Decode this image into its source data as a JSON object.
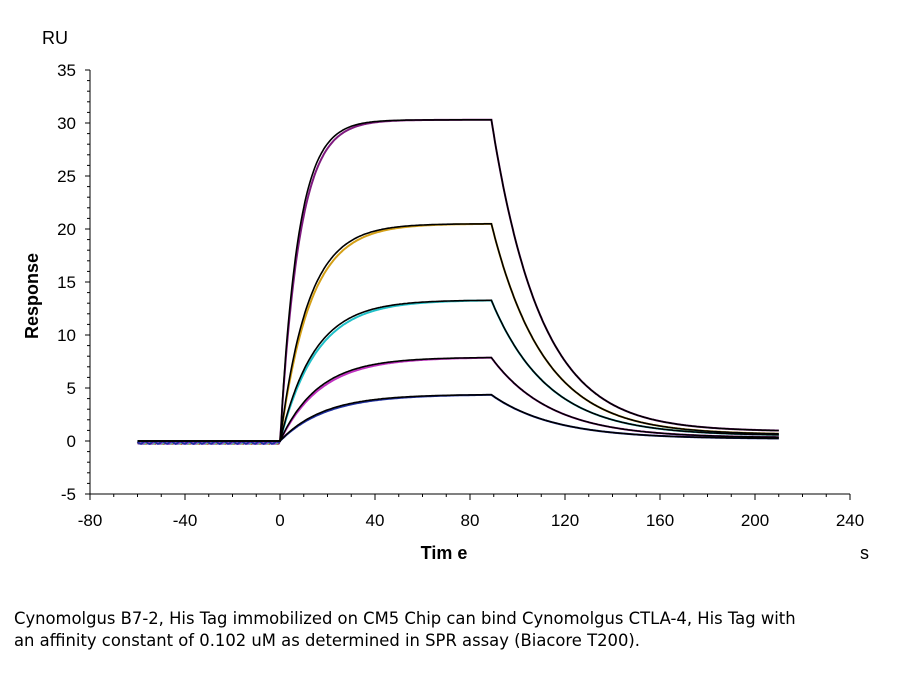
{
  "chart_data": {
    "type": "line",
    "xlabel": "Tim e",
    "ylabel": "Response",
    "x_unit": "s",
    "y_unit": "RU",
    "xlim": [
      -80,
      240
    ],
    "ylim": [
      -5,
      35
    ],
    "x_ticks": [
      -80,
      -40,
      0,
      40,
      80,
      120,
      160,
      200,
      240
    ],
    "y_ticks": [
      -5,
      0,
      5,
      10,
      15,
      20,
      25,
      30,
      35
    ],
    "grid": false,
    "legend": "none",
    "sensorgram": {
      "x_start": -60,
      "injection_start": 0,
      "injection_end": 89,
      "x_end": 210
    },
    "series": [
      {
        "color": "#7f1a7f",
        "plateau": 30.3,
        "dissociation_end": 0.9
      },
      {
        "color": "#d4a017",
        "plateau": 20.5,
        "dissociation_end": 0.6
      },
      {
        "color": "#20c0c8",
        "plateau": 13.3,
        "dissociation_end": 0.5
      },
      {
        "color": "#c030c0",
        "plateau": 7.9,
        "dissociation_end": 0.3
      },
      {
        "color": "#2030a0",
        "plateau": 4.4,
        "dissociation_end": 0.2
      }
    ],
    "fit_color": "#000000"
  },
  "caption": "Cynomolgus B7-2, His Tag immobilized on CM5 Chip can bind Cynomolgus CTLA-4, His Tag with an affinity constant of 0.102 uM as determined in SPR assay (Biacore T200)."
}
